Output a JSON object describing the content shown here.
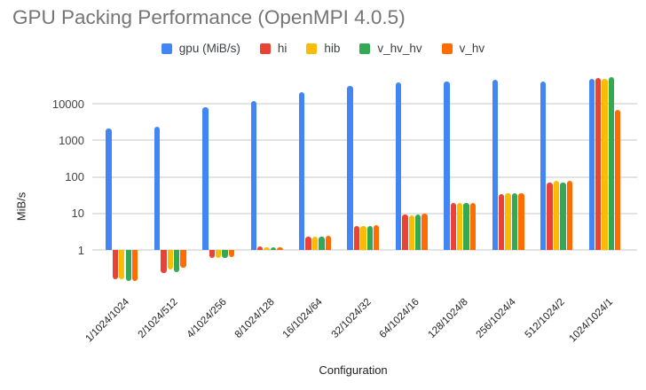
{
  "chart_data": {
    "type": "bar",
    "title": "GPU Packing Performance (OpenMPI 4.0.5)",
    "xlabel": "Configuration",
    "ylabel": "MiB/s",
    "y_scale": "log",
    "y_ticks": [
      1,
      10,
      100,
      1000,
      10000
    ],
    "ylim": [
      0.1,
      60000
    ],
    "grid": true,
    "legend_position": "top",
    "categories": [
      "1/1024/1024",
      "2/1024/512",
      "4/1024/256",
      "8/1024/128",
      "16/1024/64",
      "32/1024/32",
      "64/1024/16",
      "128/1024/8",
      "256/1024/4",
      "512/1024/2",
      "1024/1024/1"
    ],
    "series": [
      {
        "name": "gpu (MiB/s)",
        "color": "#4285F4",
        "values": [
          2100,
          2400,
          7900,
          12000,
          21500,
          31000,
          39000,
          41000,
          45000,
          42000,
          48000
        ]
      },
      {
        "name": "hi",
        "color": "#EA4335",
        "values": [
          0.16,
          0.23,
          0.6,
          1.25,
          2.3,
          4.5,
          9.5,
          19,
          34,
          70,
          51000
        ]
      },
      {
        "name": "hib",
        "color": "#FBBC04",
        "values": [
          0.16,
          0.29,
          0.62,
          1.2,
          2.3,
          4.4,
          9.0,
          19,
          36,
          80,
          48000
        ]
      },
      {
        "name": "v_hv_hv",
        "color": "#34A853",
        "values": [
          0.14,
          0.25,
          0.62,
          1.2,
          2.3,
          4.4,
          9.5,
          19,
          36,
          70,
          53000
        ]
      },
      {
        "name": "v_hv",
        "color": "#FF6D01",
        "values": [
          0.14,
          0.33,
          0.63,
          1.2,
          2.45,
          4.8,
          9.8,
          19,
          36,
          78,
          6900
        ]
      }
    ]
  }
}
